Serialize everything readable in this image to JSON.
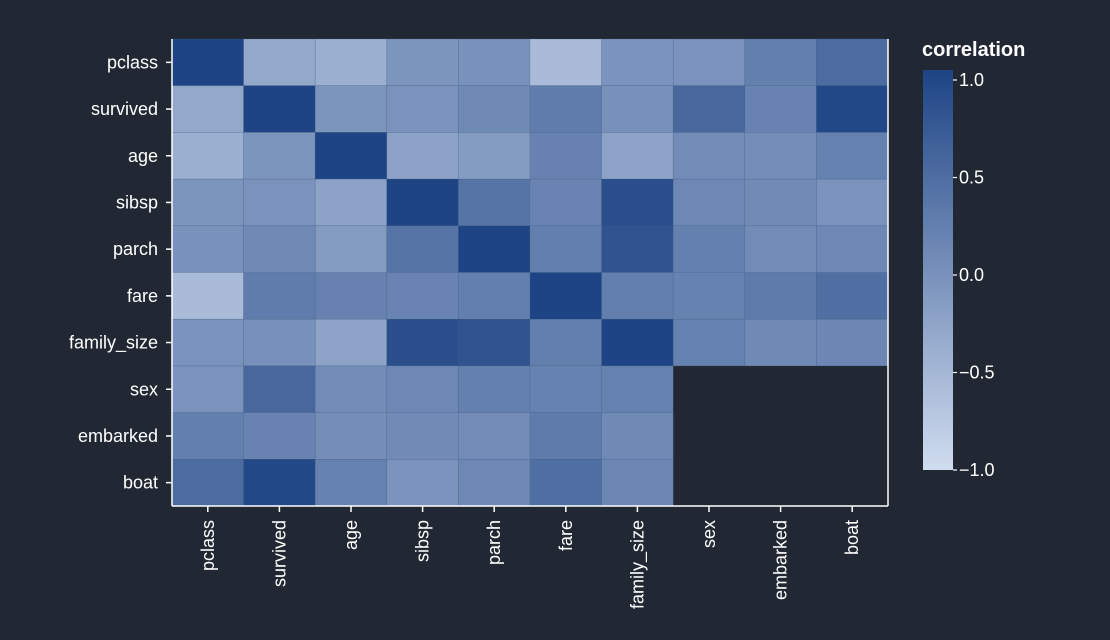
{
  "chart_data": {
    "type": "heatmap",
    "title": "",
    "xlabel": "",
    "ylabel": "",
    "columns": [
      "pclass",
      "survived",
      "age",
      "sibsp",
      "parch",
      "fare",
      "family_size",
      "sex",
      "embarked",
      "boat"
    ],
    "rows": [
      "pclass",
      "survived",
      "age",
      "sibsp",
      "parch",
      "fare",
      "family_size",
      "sex",
      "embarked",
      "boat"
    ],
    "values": [
      [
        1.0,
        -0.32,
        -0.41,
        -0.06,
        -0.02,
        -0.56,
        -0.05,
        -0.03,
        0.22,
        0.48
      ],
      [
        -0.32,
        1.0,
        -0.06,
        -0.03,
        0.08,
        0.26,
        -0.01,
        0.54,
        0.17,
        0.95
      ],
      [
        -0.41,
        -0.06,
        1.0,
        -0.24,
        -0.15,
        0.18,
        -0.25,
        0.06,
        0.03,
        0.2
      ],
      [
        -0.06,
        -0.03,
        -0.24,
        1.0,
        0.37,
        0.16,
        0.86,
        0.11,
        0.07,
        -0.03
      ],
      [
        -0.02,
        0.08,
        -0.15,
        0.37,
        1.0,
        0.22,
        0.79,
        0.21,
        0.06,
        0.1
      ],
      [
        -0.56,
        0.26,
        0.18,
        0.16,
        0.22,
        1.0,
        0.23,
        0.19,
        0.28,
        0.44
      ],
      [
        -0.05,
        -0.01,
        -0.25,
        0.86,
        0.79,
        0.23,
        1.0,
        0.2,
        0.08,
        0.12
      ],
      [
        -0.03,
        0.54,
        0.06,
        0.11,
        0.21,
        0.19,
        0.2,
        null,
        null,
        null
      ],
      [
        0.22,
        0.17,
        0.03,
        0.07,
        0.06,
        0.28,
        0.08,
        null,
        null,
        null
      ],
      [
        0.48,
        0.95,
        0.2,
        -0.03,
        0.1,
        0.44,
        0.12,
        null,
        null,
        null
      ]
    ],
    "color_scale": {
      "min": -1.0,
      "max": 1.0,
      "low_color": "#d0dcef",
      "high_color": "#1e4485"
    },
    "legend": {
      "title": "correlation",
      "ticks": [
        "1.0",
        "0.5",
        "0.0",
        "−0.5",
        "−1.0"
      ],
      "tick_values": [
        1.0,
        0.5,
        0.0,
        -0.5,
        -1.0
      ],
      "placement": "right"
    },
    "grid": false
  }
}
